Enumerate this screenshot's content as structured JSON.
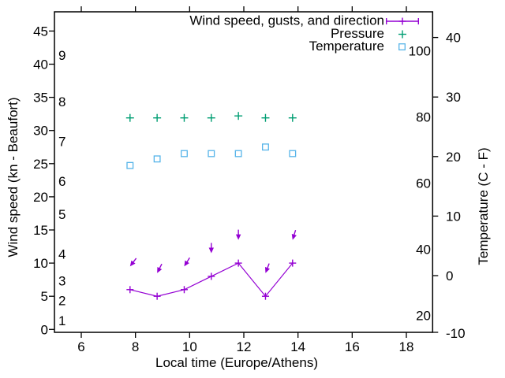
{
  "chart_data": {
    "type": "line",
    "title": "",
    "xlabel": "Local time (Europe/Athens)",
    "ylabel_left": "Wind speed (kn - Beaufort)",
    "ylabel_right": "Temperature (C - F)",
    "xlim": [
      5,
      20
    ],
    "x_ticks": [
      6,
      8,
      10,
      12,
      14,
      16,
      18
    ],
    "left_axis_kn_ticks": [
      0,
      5,
      10,
      15,
      20,
      25,
      30,
      35,
      40,
      45
    ],
    "left_axis_kn_range": [
      0,
      48
    ],
    "beaufort_ticks": [
      {
        "label": "1",
        "at_kn": 1
      },
      {
        "label": "2",
        "at_kn": 4
      },
      {
        "label": "3",
        "at_kn": 7
      },
      {
        "label": "4",
        "at_kn": 11
      },
      {
        "label": "5",
        "at_kn": 17
      },
      {
        "label": "6",
        "at_kn": 22
      },
      {
        "label": "7",
        "at_kn": 28
      },
      {
        "label": "8",
        "at_kn": 34
      },
      {
        "label": "9",
        "at_kn": 41
      }
    ],
    "right_axis_celsius_ticks": [
      -10,
      0,
      10,
      20,
      30,
      40
    ],
    "right_axis_fahrenheit_ticks": [
      20,
      40,
      60,
      80,
      100
    ],
    "x_hours": [
      7.8,
      8.8,
      9.8,
      10.8,
      11.8,
      12.8,
      13.8
    ],
    "series": [
      {
        "name": "Wind speed, gusts, and direction",
        "color": "#9400d3",
        "marker": "plus-line-errorbar",
        "wind_kn": [
          6,
          5,
          6,
          8,
          10,
          5,
          10
        ],
        "gust_kn": [
          9.5,
          8.5,
          9.5,
          11.5,
          13.5,
          8.5,
          13.5
        ],
        "wind_dir_deg": [
          217,
          207,
          212,
          180,
          180,
          201,
          197
        ]
      },
      {
        "name": "Pressure",
        "color": "#009e73",
        "marker": "plus",
        "y_left_axis_kn": [
          31.9,
          31.9,
          31.9,
          31.9,
          32.2,
          31.9,
          31.9
        ]
      },
      {
        "name": "Temperature",
        "color": "#56b4e9",
        "marker": "open-square",
        "temp_c": [
          18.5,
          19.6,
          20.5,
          20.5,
          20.5,
          21.6,
          20.5
        ]
      }
    ],
    "legend": {
      "position": "top-right-inside",
      "entries": [
        "Wind speed, gusts, and direction",
        "Pressure",
        "Temperature"
      ]
    }
  }
}
